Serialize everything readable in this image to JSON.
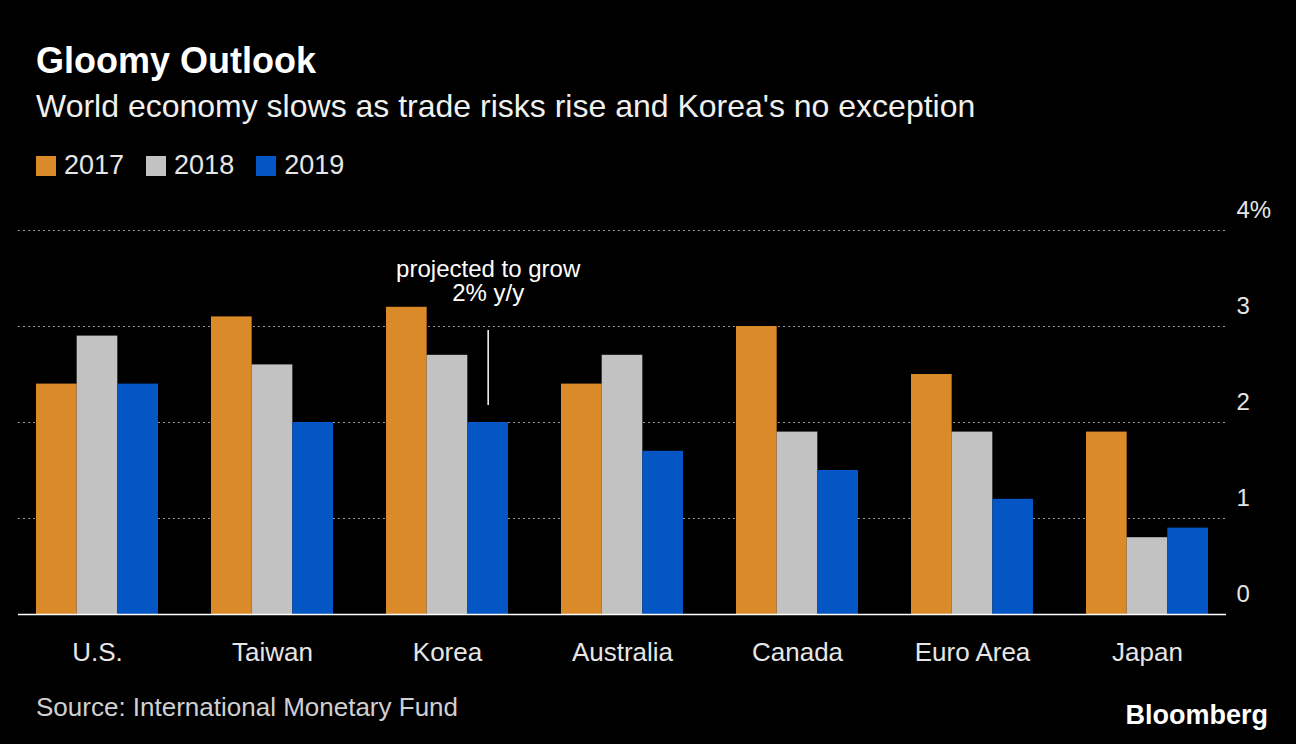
{
  "chart_data": {
    "type": "bar",
    "title": "Gloomy Outlook",
    "subtitle": "World economy slows as trade risks rise and Korea's no exception",
    "categories": [
      "U.S.",
      "Taiwan",
      "Korea",
      "Australia",
      "Canada",
      "Euro Area",
      "Japan"
    ],
    "series": [
      {
        "name": "2017",
        "color": "#db8a2a",
        "values": [
          2.4,
          3.1,
          3.2,
          2.4,
          3.0,
          2.5,
          1.9
        ]
      },
      {
        "name": "2018",
        "color": "#c2c2c2",
        "values": [
          2.9,
          2.6,
          2.7,
          2.7,
          1.9,
          1.9,
          0.8
        ]
      },
      {
        "name": "2019",
        "color": "#0456c4",
        "values": [
          2.4,
          2.0,
          2.0,
          1.7,
          1.5,
          1.2,
          0.9
        ]
      }
    ],
    "ylim": [
      0,
      4
    ],
    "yticks": [
      0,
      1,
      2,
      3,
      {
        "value": 4,
        "label": "4%"
      }
    ],
    "grid": true,
    "legend": "top-left",
    "annotations": [
      {
        "text": "projected to grow\n2% y/y",
        "category": "Korea",
        "series": "2019"
      }
    ],
    "source": "Source: International Monetary Fund",
    "credit": "Bloomberg"
  }
}
